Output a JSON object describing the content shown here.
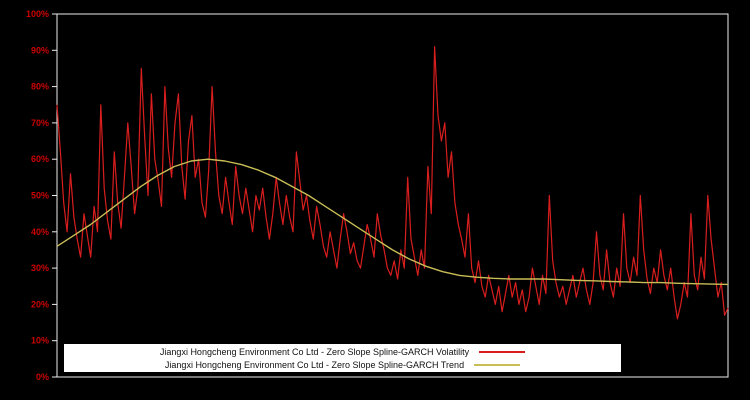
{
  "page": {
    "background": "#000000"
  },
  "chart_data": {
    "type": "line",
    "title": "",
    "xlabel": "",
    "ylabel": "",
    "ylim": [
      0,
      100
    ],
    "grid": false,
    "legend_position": "bottom-inside",
    "axis_color": "#ededed",
    "tick_label_color": "#cc0000",
    "y_tick_values": [
      0,
      10,
      20,
      30,
      40,
      50,
      60,
      70,
      80,
      90,
      100
    ],
    "y_tick_labels": [
      "0%",
      "10%",
      "20%",
      "30%",
      "40%",
      "50%",
      "60%",
      "70%",
      "80%",
      "90%",
      "100%"
    ],
    "series": [
      {
        "name": "Jiangxi Hongcheng Environment Co Ltd - Zero Slope Spline-GARCH Volatility",
        "color": "#d91e1e",
        "values": [
          75,
          62,
          48,
          40,
          56,
          44,
          38,
          33,
          45,
          39,
          33,
          47,
          40,
          75,
          52,
          43,
          38,
          62,
          48,
          41,
          55,
          70,
          58,
          45,
          52,
          85,
          66,
          50,
          78,
          60,
          54,
          47,
          80,
          63,
          55,
          70,
          78,
          58,
          49,
          65,
          72,
          55,
          60,
          48,
          44,
          57,
          80,
          62,
          50,
          45,
          55,
          48,
          42,
          58,
          50,
          45,
          52,
          46,
          40,
          50,
          46,
          52,
          44,
          38,
          45,
          55,
          48,
          42,
          50,
          44,
          40,
          62,
          54,
          46,
          50,
          43,
          38,
          47,
          42,
          36,
          33,
          40,
          35,
          30,
          38,
          45,
          40,
          34,
          37,
          32,
          30,
          36,
          42,
          38,
          33,
          45,
          39,
          35,
          30,
          28,
          32,
          27,
          35,
          30,
          55,
          38,
          33,
          28,
          35,
          30,
          58,
          45,
          91,
          72,
          65,
          70,
          55,
          62,
          48,
          42,
          38,
          33,
          45,
          30,
          26,
          32,
          25,
          22,
          28,
          24,
          20,
          25,
          18,
          23,
          28,
          22,
          26,
          20,
          24,
          18,
          22,
          30,
          25,
          20,
          28,
          23,
          50,
          32,
          26,
          22,
          25,
          20,
          24,
          28,
          22,
          26,
          30,
          24,
          20,
          26,
          40,
          28,
          24,
          35,
          26,
          22,
          30,
          25,
          45,
          30,
          26,
          33,
          28,
          50,
          35,
          27,
          23,
          30,
          26,
          35,
          28,
          24,
          30,
          22,
          16,
          20,
          26,
          22,
          45,
          28,
          24,
          33,
          27,
          50,
          38,
          30,
          22,
          26,
          17,
          19
        ]
      },
      {
        "name": "Jiangxi Hongcheng Environment Co Ltd - Zero Slope Spline-GARCH Trend",
        "color": "#c9bd55",
        "values": [
          36,
          39,
          42,
          45.5,
          49,
          52.5,
          55.5,
          58,
          59.5,
          60,
          59.5,
          58.5,
          57,
          55,
          52.5,
          50,
          47,
          44,
          41,
          38,
          35,
          32.5,
          30.5,
          29,
          28,
          27.5,
          27.2,
          27,
          27,
          27,
          26.8,
          26.6,
          26.5,
          26.3,
          26.2,
          26,
          26,
          25.8,
          25.7,
          25.6,
          25.5
        ]
      }
    ]
  }
}
